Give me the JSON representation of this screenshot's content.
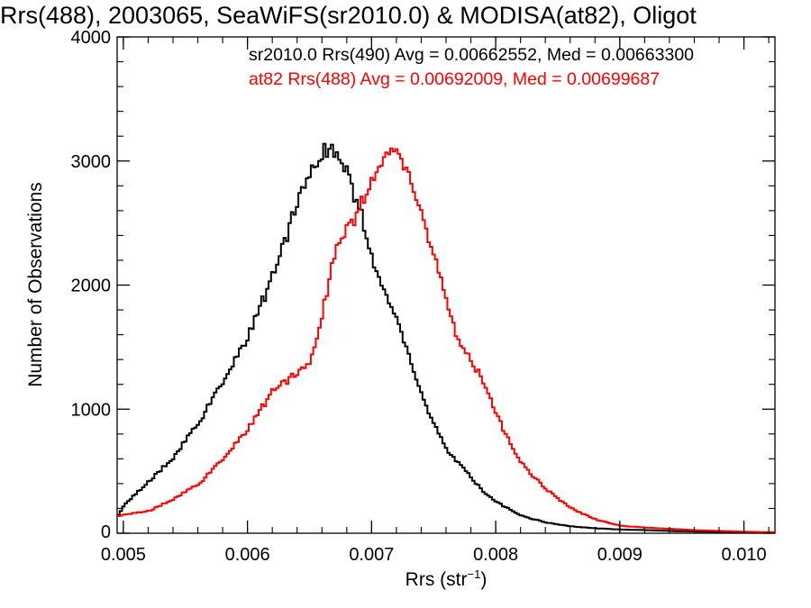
{
  "chart_data": {
    "type": "line",
    "title": "Rrs(488), 2003065, SeaWiFS(sr2010.0) & MODISA(at82), Oligot",
    "xlabel": "Rrs (str",
    "xlabel_sup": "−1",
    "xlabel_end": ")",
    "ylabel": "Number of Observations",
    "xlim": [
      0.00495,
      0.01025
    ],
    "ylim": [
      0,
      4000
    ],
    "x_ticks": [
      0.005,
      0.006,
      0.007,
      0.008,
      0.009,
      0.01
    ],
    "x_tick_labels": [
      "0.005",
      "0.006",
      "0.007",
      "0.008",
      "0.009",
      "0.010"
    ],
    "y_ticks": [
      0,
      1000,
      2000,
      3000,
      4000
    ],
    "y_tick_labels": [
      "0",
      "1000",
      "2000",
      "3000",
      "4000"
    ],
    "grid": false,
    "legend_position": "top-right",
    "series": [
      {
        "legend": "sr2010.0 Rrs(490) Avg = 0.00662552, Med = 0.00663300",
        "color": "#000000",
        "x": [
          0.00495,
          0.005,
          0.0052,
          0.0054,
          0.0056,
          0.0058,
          0.006,
          0.0062,
          0.0063,
          0.0064,
          0.0065,
          0.0066,
          0.00665,
          0.0067,
          0.0068,
          0.0069,
          0.007,
          0.0071,
          0.0072,
          0.0073,
          0.0074,
          0.0075,
          0.0076,
          0.0077,
          0.0078,
          0.0079,
          0.008,
          0.0082,
          0.0084,
          0.0086,
          0.0088,
          0.009,
          0.0092,
          0.0094,
          0.0096,
          0.0098,
          0.01,
          0.01025
        ],
        "y": [
          150,
          230,
          420,
          620,
          900,
          1220,
          1600,
          2080,
          2380,
          2700,
          2950,
          3080,
          3100,
          3080,
          2880,
          2600,
          2200,
          1920,
          1700,
          1400,
          1100,
          860,
          660,
          560,
          440,
          330,
          250,
          140,
          85,
          55,
          40,
          30,
          25,
          18,
          14,
          10,
          8,
          6
        ]
      },
      {
        "legend": "at82 Rrs(488) Avg = 0.00692009, Med = 0.00699687",
        "color": "#ff0000",
        "x": [
          0.00495,
          0.005,
          0.0052,
          0.0054,
          0.0056,
          0.0058,
          0.006,
          0.0062,
          0.0064,
          0.0065,
          0.0066,
          0.0067,
          0.0068,
          0.0069,
          0.007,
          0.0071,
          0.00715,
          0.0072,
          0.0073,
          0.0074,
          0.0075,
          0.0076,
          0.0077,
          0.0078,
          0.0079,
          0.008,
          0.0081,
          0.0082,
          0.0084,
          0.0086,
          0.0088,
          0.009,
          0.0092,
          0.0094,
          0.0096,
          0.0098,
          0.01,
          0.01025
        ],
        "y": [
          140,
          150,
          180,
          280,
          400,
          600,
          850,
          1150,
          1300,
          1400,
          1800,
          2300,
          2450,
          2640,
          2870,
          3020,
          3080,
          3050,
          2860,
          2560,
          2200,
          1840,
          1520,
          1380,
          1220,
          950,
          740,
          560,
          350,
          200,
          110,
          60,
          45,
          35,
          25,
          18,
          12,
          8
        ]
      }
    ]
  }
}
